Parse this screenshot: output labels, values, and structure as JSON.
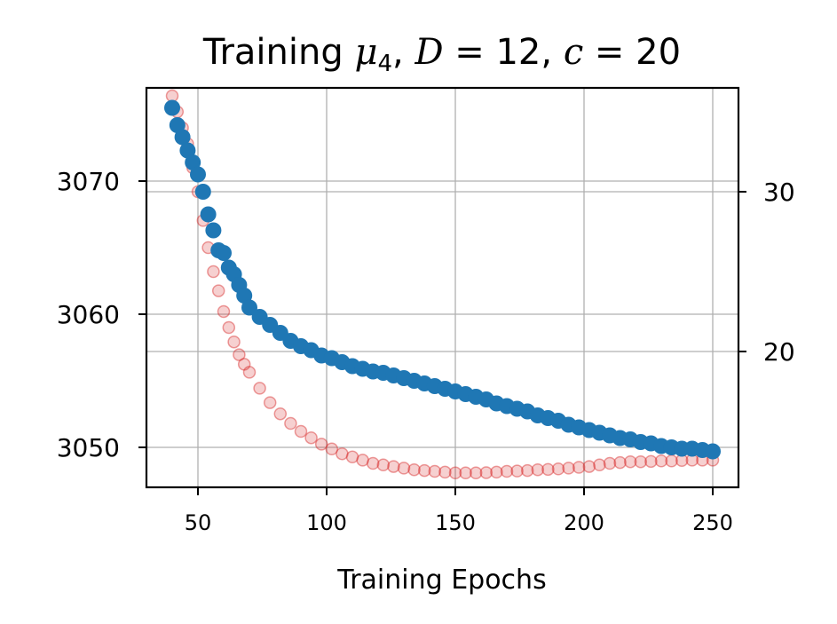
{
  "chart_data": {
    "type": "scatter",
    "title": {
      "prefix": "Training ",
      "mu": "μ",
      "mu_sub": "4",
      "sep1": ", ",
      "d_var": "D",
      "d_eq": " = 12, ",
      "c_var": "c",
      "c_eq": " = 20"
    },
    "xlabel": "Training Epochs",
    "ylabel_left": "",
    "ylabel_right": "",
    "grid": true,
    "xlim": [
      30,
      260
    ],
    "ylim_left": [
      3047,
      3077
    ],
    "ylim_right": [
      11.5,
      36.5
    ],
    "x_ticks": [
      50,
      100,
      150,
      200,
      250
    ],
    "x_tick_labels": [
      "50",
      "100",
      "150",
      "200",
      "250"
    ],
    "y_left_ticks": [
      3050,
      3060,
      3070
    ],
    "y_left_tick_labels": [
      "3050",
      "3060",
      "3070"
    ],
    "y_right_ticks": [
      20,
      30
    ],
    "y_right_tick_labels": [
      "20",
      "30"
    ],
    "colors": {
      "series_left": "#1f77b4",
      "series_right": "#d62728",
      "grid": "#b0b0b0"
    },
    "series": [
      {
        "name": "left-axis series",
        "axis": "left",
        "style": "solid",
        "x": [
          40,
          42,
          44,
          46,
          48,
          50,
          52,
          54,
          56,
          58,
          60,
          62,
          64,
          66,
          68,
          70,
          74,
          78,
          82,
          86,
          90,
          94,
          98,
          102,
          106,
          110,
          114,
          118,
          122,
          126,
          130,
          134,
          138,
          142,
          146,
          150,
          154,
          158,
          162,
          166,
          170,
          174,
          178,
          182,
          186,
          190,
          194,
          198,
          202,
          206,
          210,
          214,
          218,
          222,
          226,
          230,
          234,
          238,
          242,
          246,
          250
        ],
        "y": [
          3075.5,
          3074.2,
          3073.3,
          3072.3,
          3071.4,
          3070.5,
          3069.2,
          3067.5,
          3066.3,
          3064.8,
          3064.6,
          3063.5,
          3063.0,
          3062.2,
          3061.4,
          3060.5,
          3059.8,
          3059.2,
          3058.6,
          3058.0,
          3057.6,
          3057.3,
          3056.9,
          3056.7,
          3056.4,
          3056.1,
          3055.9,
          3055.7,
          3055.6,
          3055.4,
          3055.2,
          3055.0,
          3054.8,
          3054.6,
          3054.4,
          3054.2,
          3054.0,
          3053.8,
          3053.6,
          3053.3,
          3053.1,
          3052.9,
          3052.7,
          3052.4,
          3052.2,
          3052.0,
          3051.7,
          3051.5,
          3051.3,
          3051.1,
          3050.9,
          3050.7,
          3050.6,
          3050.4,
          3050.3,
          3050.1,
          3050.0,
          3049.9,
          3049.9,
          3049.8,
          3049.7
        ]
      },
      {
        "name": "right-axis series",
        "axis": "right",
        "style": "hollow",
        "x": [
          40,
          42,
          44,
          46,
          48,
          50,
          52,
          54,
          56,
          58,
          60,
          62,
          64,
          66,
          68,
          70,
          74,
          78,
          82,
          86,
          90,
          94,
          98,
          102,
          106,
          110,
          114,
          118,
          122,
          126,
          130,
          134,
          138,
          142,
          146,
          150,
          154,
          158,
          162,
          166,
          170,
          174,
          178,
          182,
          186,
          190,
          194,
          198,
          202,
          206,
          210,
          214,
          218,
          222,
          226,
          230,
          234,
          238,
          242,
          246,
          250
        ],
        "y": [
          36.0,
          35.0,
          34.0,
          33.0,
          31.5,
          30.0,
          28.2,
          26.5,
          25.0,
          23.8,
          22.5,
          21.5,
          20.6,
          19.8,
          19.2,
          18.7,
          17.7,
          16.8,
          16.1,
          15.5,
          15.0,
          14.6,
          14.2,
          13.9,
          13.6,
          13.4,
          13.2,
          13.0,
          12.9,
          12.8,
          12.7,
          12.6,
          12.55,
          12.5,
          12.45,
          12.4,
          12.4,
          12.4,
          12.42,
          12.45,
          12.5,
          12.52,
          12.55,
          12.6,
          12.62,
          12.65,
          12.7,
          12.75,
          12.8,
          12.9,
          13.0,
          13.05,
          13.1,
          13.1,
          13.12,
          13.15,
          13.15,
          13.18,
          13.2,
          13.2,
          13.2
        ]
      }
    ]
  }
}
